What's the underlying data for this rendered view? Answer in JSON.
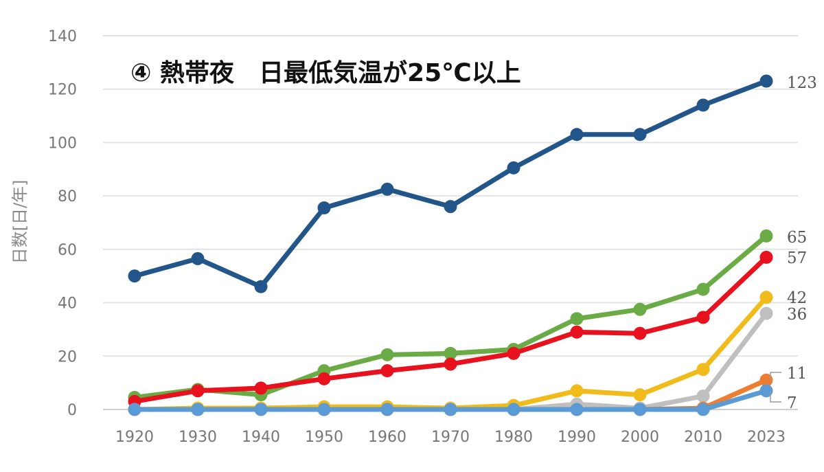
{
  "chart_data": {
    "type": "line",
    "title": "④ 熱帯夜　日最低気温が25℃以上",
    "xlabel": "",
    "ylabel": "日数[日/年]",
    "categories": [
      "1920",
      "1930",
      "1940",
      "1950",
      "1960",
      "1970",
      "1980",
      "1990",
      "2000",
      "2010",
      "2023"
    ],
    "ylim": [
      0,
      140
    ],
    "yticks": [
      "0",
      "20",
      "40",
      "60",
      "80",
      "100",
      "120",
      "140"
    ],
    "grid": true,
    "series": [
      {
        "values": [
          50,
          56.5,
          46,
          75.5,
          82.5,
          76,
          90.5,
          103,
          103,
          114,
          123
        ],
        "color": "#22558a",
        "end_label": "123"
      },
      {
        "values": [
          4.5,
          7.5,
          5.5,
          14.5,
          20.5,
          21,
          22.5,
          34,
          37.5,
          45,
          65
        ],
        "color": "#6aab45",
        "end_label": "65"
      },
      {
        "values": [
          3,
          7,
          8,
          11.5,
          14.5,
          17,
          21,
          29,
          28.5,
          34.5,
          57
        ],
        "color": "#e8121f",
        "end_label": "57"
      },
      {
        "values": [
          0,
          0.5,
          0.5,
          1,
          1,
          0.5,
          1.5,
          7,
          5.5,
          15,
          42
        ],
        "color": "#f2bb1c",
        "end_label": "42"
      },
      {
        "values": [
          0,
          0,
          0,
          0,
          0,
          0,
          0,
          2,
          0.5,
          5,
          36
        ],
        "color": "#bfbfbf",
        "end_label": "36"
      },
      {
        "values": [
          0,
          0,
          0,
          0,
          0,
          0,
          0,
          0,
          0,
          0,
          7
        ],
        "color": "#5b9bd5",
        "end_label": "7"
      },
      {
        "values": [
          0,
          0,
          0,
          0,
          0,
          0,
          0,
          0,
          0,
          0.5,
          11
        ],
        "color": "#ed7d31",
        "end_label": "11"
      }
    ]
  }
}
